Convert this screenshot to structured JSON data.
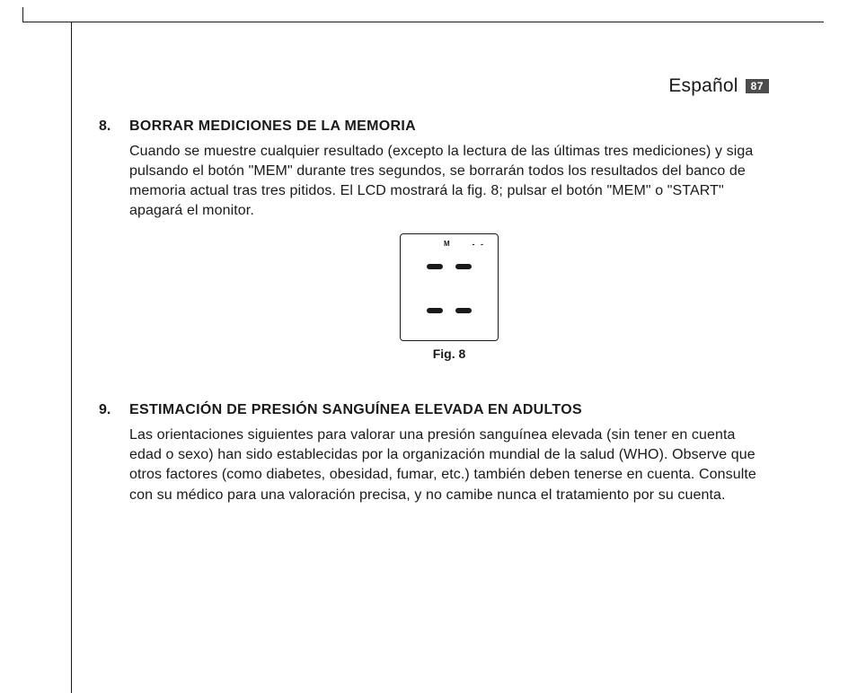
{
  "page": {
    "language": "Español",
    "number": "87"
  },
  "section8": {
    "number": "8.",
    "title": "BORRAR MEDICIONES DE LA MEMORIA",
    "text": "Cuando se muestre cualquier resultado (excepto la lectura de las últimas tres mediciones) y siga pulsando el botón \"MEM\" durante tres segundos, se borrarán todos los resultados del banco de memoria actual tras tres pitidos. El LCD mostrará la fig. 8; pulsar el botón \"MEM\" o \"START\" apagará el monitor."
  },
  "figure8": {
    "m_label": "M",
    "dashes": "- -",
    "caption": "Fig. 8",
    "seg_color": "#1a1a1a",
    "border_color": "#1a1a1a",
    "bg_color": "#ffffff"
  },
  "section9": {
    "number": "9.",
    "title": "ESTIMACIÓN DE PRESIÓN SANGUÍNEA ELEVADA EN ADULTOS",
    "text": "Las orientaciones siguientes para valorar una presión sanguínea elevada (sin tener en cuenta edad o sexo) han sido establecidas por la organización mundial de la salud (WHO). Observe que otros factores (como diabetes, obesidad, fumar, etc.) también deben tenerse en cuenta. Consulte con su médico para una valoración precisa, y no camibe nunca el tratamiento por su cuenta."
  },
  "style": {
    "text_color": "#1a1a1a",
    "badge_bg": "#4d4d4d",
    "badge_fg": "#ffffff",
    "body_fontsize": 16,
    "title_fontsize": 16,
    "lang_fontsize": 21,
    "caption_fontsize": 14
  }
}
